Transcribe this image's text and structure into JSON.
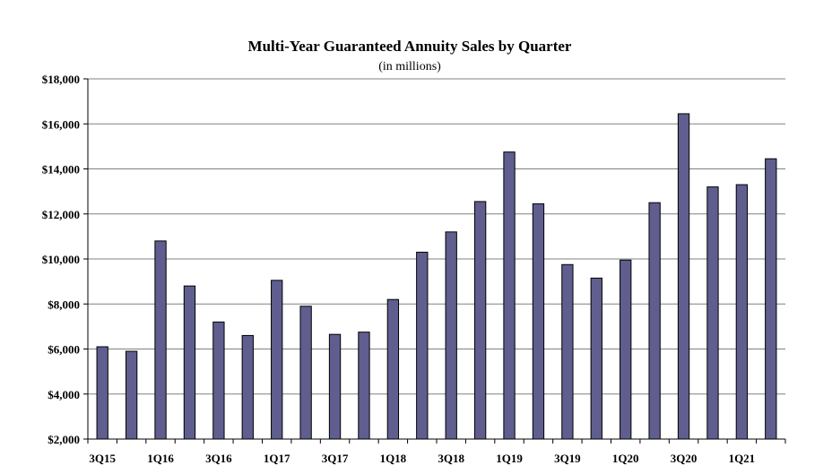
{
  "chart_data": {
    "type": "bar",
    "title": "Multi-Year Guaranteed Annuity Sales by Quarter",
    "subtitle": "(in millions)",
    "categories": [
      "3Q15",
      "4Q15",
      "1Q16",
      "2Q16",
      "3Q16",
      "4Q16",
      "1Q17",
      "2Q17",
      "3Q17",
      "4Q17",
      "1Q18",
      "2Q18",
      "3Q18",
      "4Q18",
      "1Q19",
      "2Q19",
      "3Q19",
      "4Q19",
      "1Q20",
      "2Q20",
      "3Q20",
      "4Q20",
      "1Q21",
      "2Q21"
    ],
    "x_tick_labels": [
      "3Q15",
      "1Q16",
      "3Q16",
      "1Q17",
      "3Q17",
      "1Q18",
      "3Q18",
      "1Q19",
      "3Q19",
      "1Q20",
      "3Q20",
      "1Q21"
    ],
    "values": [
      6100,
      5900,
      10800,
      8800,
      7200,
      6600,
      9050,
      7900,
      6650,
      6750,
      8200,
      10300,
      11200,
      12550,
      14750,
      12450,
      9750,
      9150,
      9950,
      12500,
      16450,
      13200,
      13300,
      14450
    ],
    "ylim": [
      2000,
      18000
    ],
    "y_ticks": [
      2000,
      4000,
      6000,
      8000,
      10000,
      12000,
      14000,
      16000,
      18000
    ],
    "y_tick_labels": [
      "$2,000",
      "$4,000",
      "$6,000",
      "$8,000",
      "$10,000",
      "$12,000",
      "$14,000",
      "$16,000",
      "$18,000"
    ],
    "grid": true,
    "legend": false,
    "colors": {
      "bar": "#5f5e8f",
      "grid": "#808080",
      "axis": "#000000"
    }
  }
}
